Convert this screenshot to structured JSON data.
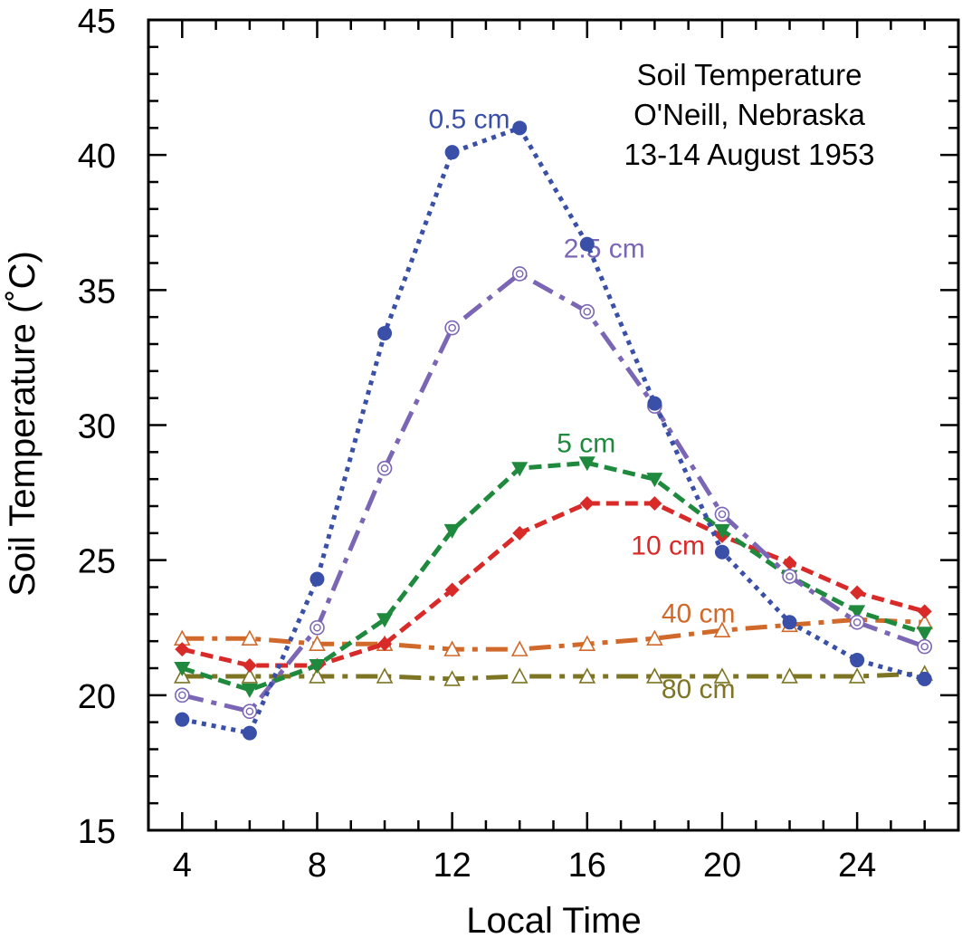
{
  "chart_data": {
    "type": "line",
    "title_lines": [
      "Soil Temperature",
      "O'Neill, Nebraska",
      "13-14 August 1953"
    ],
    "xlabel": "Local Time",
    "ylabel": "Soil Temperature (˚C)",
    "xlim": [
      3,
      27
    ],
    "ylim": [
      15,
      45
    ],
    "x_ticks": [
      4,
      8,
      12,
      16,
      20,
      24
    ],
    "y_ticks": [
      15,
      20,
      25,
      30,
      35,
      40,
      45
    ],
    "grid": false,
    "x": [
      4,
      6,
      8,
      10,
      12,
      14,
      16,
      18,
      20,
      22,
      24,
      26
    ],
    "series": [
      {
        "name": "0.5 cm",
        "color": "#3a4fa8",
        "marker": "circle-filled",
        "line_style": "dotted",
        "label_anchor": [
          11.3,
          41.0
        ],
        "values": [
          19.1,
          18.6,
          24.3,
          33.4,
          40.1,
          41.0,
          36.7,
          30.8,
          25.3,
          22.7,
          21.3,
          20.6
        ]
      },
      {
        "name": "2.5 cm",
        "color": "#7b66b5",
        "marker": "circle-dot-open",
        "line_style": "dash-dot",
        "label_anchor": [
          15.3,
          36.2
        ],
        "values": [
          20.0,
          19.4,
          22.5,
          28.4,
          33.6,
          35.6,
          34.2,
          30.7,
          26.7,
          24.4,
          22.7,
          21.8
        ]
      },
      {
        "name": "5 cm",
        "color": "#1f8a3e",
        "marker": "triangle-down-filled",
        "line_style": "dashed",
        "label_anchor": [
          15.1,
          29.0
        ],
        "values": [
          21.0,
          20.2,
          21.1,
          22.8,
          26.1,
          28.4,
          28.6,
          28.0,
          26.1,
          24.4,
          23.1,
          22.3
        ]
      },
      {
        "name": "10 cm",
        "color": "#d92a2a",
        "marker": "diamond-filled",
        "line_style": "dashed",
        "label_anchor": [
          17.3,
          25.2
        ],
        "values": [
          21.7,
          21.1,
          21.1,
          21.9,
          23.9,
          26.0,
          27.1,
          27.1,
          25.9,
          24.9,
          23.8,
          23.1
        ]
      },
      {
        "name": "40 cm",
        "color": "#d0692a",
        "marker": "triangle-up-open",
        "line_style": "dash-dot",
        "label_anchor": [
          18.2,
          22.7
        ],
        "values": [
          22.1,
          22.1,
          21.9,
          21.9,
          21.7,
          21.7,
          21.9,
          22.1,
          22.4,
          22.6,
          22.8,
          22.7
        ]
      },
      {
        "name": "80 cm",
        "color": "#7d7524",
        "marker": "triangle-up-open",
        "line_style": "dash-dot",
        "label_anchor": [
          18.2,
          19.9
        ],
        "values": [
          20.7,
          20.7,
          20.7,
          20.7,
          20.6,
          20.7,
          20.7,
          20.7,
          20.7,
          20.7,
          20.7,
          20.8
        ]
      }
    ]
  }
}
